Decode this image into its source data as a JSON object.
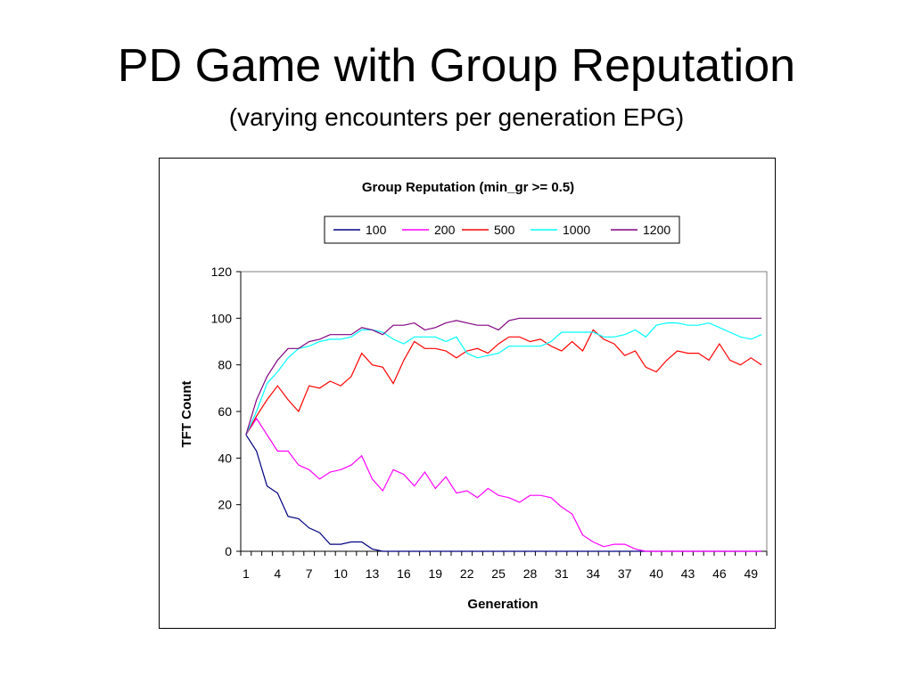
{
  "slide": {
    "title": "PD Game with Group Reputation",
    "subtitle": "(varying encounters per generation EPG)"
  },
  "chart_data": {
    "type": "line",
    "title": "Group Reputation (min_gr >= 0.5)",
    "xlabel": "Generation",
    "ylabel": "TFT Count",
    "ylim": [
      0,
      120
    ],
    "yticks": [
      0,
      20,
      40,
      60,
      80,
      100,
      120
    ],
    "xtick_labels": [
      "1",
      "4",
      "7",
      "10",
      "13",
      "16",
      "19",
      "22",
      "25",
      "28",
      "31",
      "34",
      "37",
      "40",
      "43",
      "46",
      "49"
    ],
    "x": [
      1,
      2,
      3,
      4,
      5,
      6,
      7,
      8,
      9,
      10,
      11,
      12,
      13,
      14,
      15,
      16,
      17,
      18,
      19,
      20,
      21,
      22,
      23,
      24,
      25,
      26,
      27,
      28,
      29,
      30,
      31,
      32,
      33,
      34,
      35,
      36,
      37,
      38,
      39,
      40,
      41,
      42,
      43,
      44,
      45,
      46,
      47,
      48,
      49,
      50
    ],
    "grid": false,
    "legend_position": "top",
    "series": [
      {
        "name": "100",
        "color": "#000080",
        "values": [
          50,
          43,
          28,
          25,
          15,
          14,
          10,
          8,
          3,
          3,
          4,
          4,
          1,
          0,
          0,
          0,
          0,
          0,
          0,
          0,
          0,
          0,
          0,
          0,
          0,
          0,
          0,
          0,
          0,
          0,
          0,
          0,
          0,
          0,
          0,
          0,
          0,
          0,
          0,
          0,
          0,
          0,
          0,
          0,
          0,
          0,
          0,
          0,
          0,
          0
        ]
      },
      {
        "name": "200",
        "color": "#FF00FF",
        "values": [
          50,
          57,
          50,
          43,
          43,
          37,
          35,
          31,
          34,
          35,
          37,
          41,
          31,
          26,
          35,
          33,
          28,
          34,
          27,
          32,
          25,
          26,
          23,
          27,
          24,
          23,
          21,
          24,
          24,
          23,
          19,
          16,
          7,
          4,
          2,
          3,
          3,
          1,
          0,
          0,
          0,
          0,
          0,
          0,
          0,
          0,
          0,
          0,
          0,
          0
        ]
      },
      {
        "name": "500",
        "color": "#FF0000",
        "values": [
          50,
          58,
          65,
          71,
          65,
          60,
          71,
          70,
          73,
          71,
          75,
          85,
          80,
          79,
          72,
          82,
          90,
          87,
          87,
          86,
          83,
          86,
          87,
          85,
          89,
          92,
          92,
          90,
          91,
          88,
          86,
          90,
          86,
          95,
          91,
          89,
          84,
          86,
          79,
          77,
          82,
          86,
          85,
          85,
          82,
          89,
          82,
          80,
          83,
          80
        ]
      },
      {
        "name": "1000",
        "color": "#00FFFF",
        "values": [
          50,
          60,
          72,
          77,
          83,
          87,
          88,
          90,
          91,
          91,
          92,
          95,
          95,
          94,
          91,
          89,
          92,
          92,
          92,
          90,
          92,
          85,
          83,
          84,
          85,
          88,
          88,
          88,
          88,
          90,
          94,
          94,
          94,
          94,
          92,
          92,
          93,
          95,
          92,
          97,
          98,
          98,
          97,
          97,
          98,
          96,
          94,
          92,
          91,
          93
        ]
      },
      {
        "name": "1200",
        "color": "#800080",
        "values": [
          50,
          65,
          75,
          82,
          87,
          87,
          90,
          91,
          93,
          93,
          93,
          96,
          95,
          93,
          97,
          97,
          98,
          95,
          96,
          98,
          99,
          98,
          97,
          97,
          95,
          99,
          100,
          100,
          100,
          100,
          100,
          100,
          100,
          100,
          100,
          100,
          100,
          100,
          100,
          100,
          100,
          100,
          100,
          100,
          100,
          100,
          100,
          100,
          100,
          100
        ]
      }
    ]
  }
}
